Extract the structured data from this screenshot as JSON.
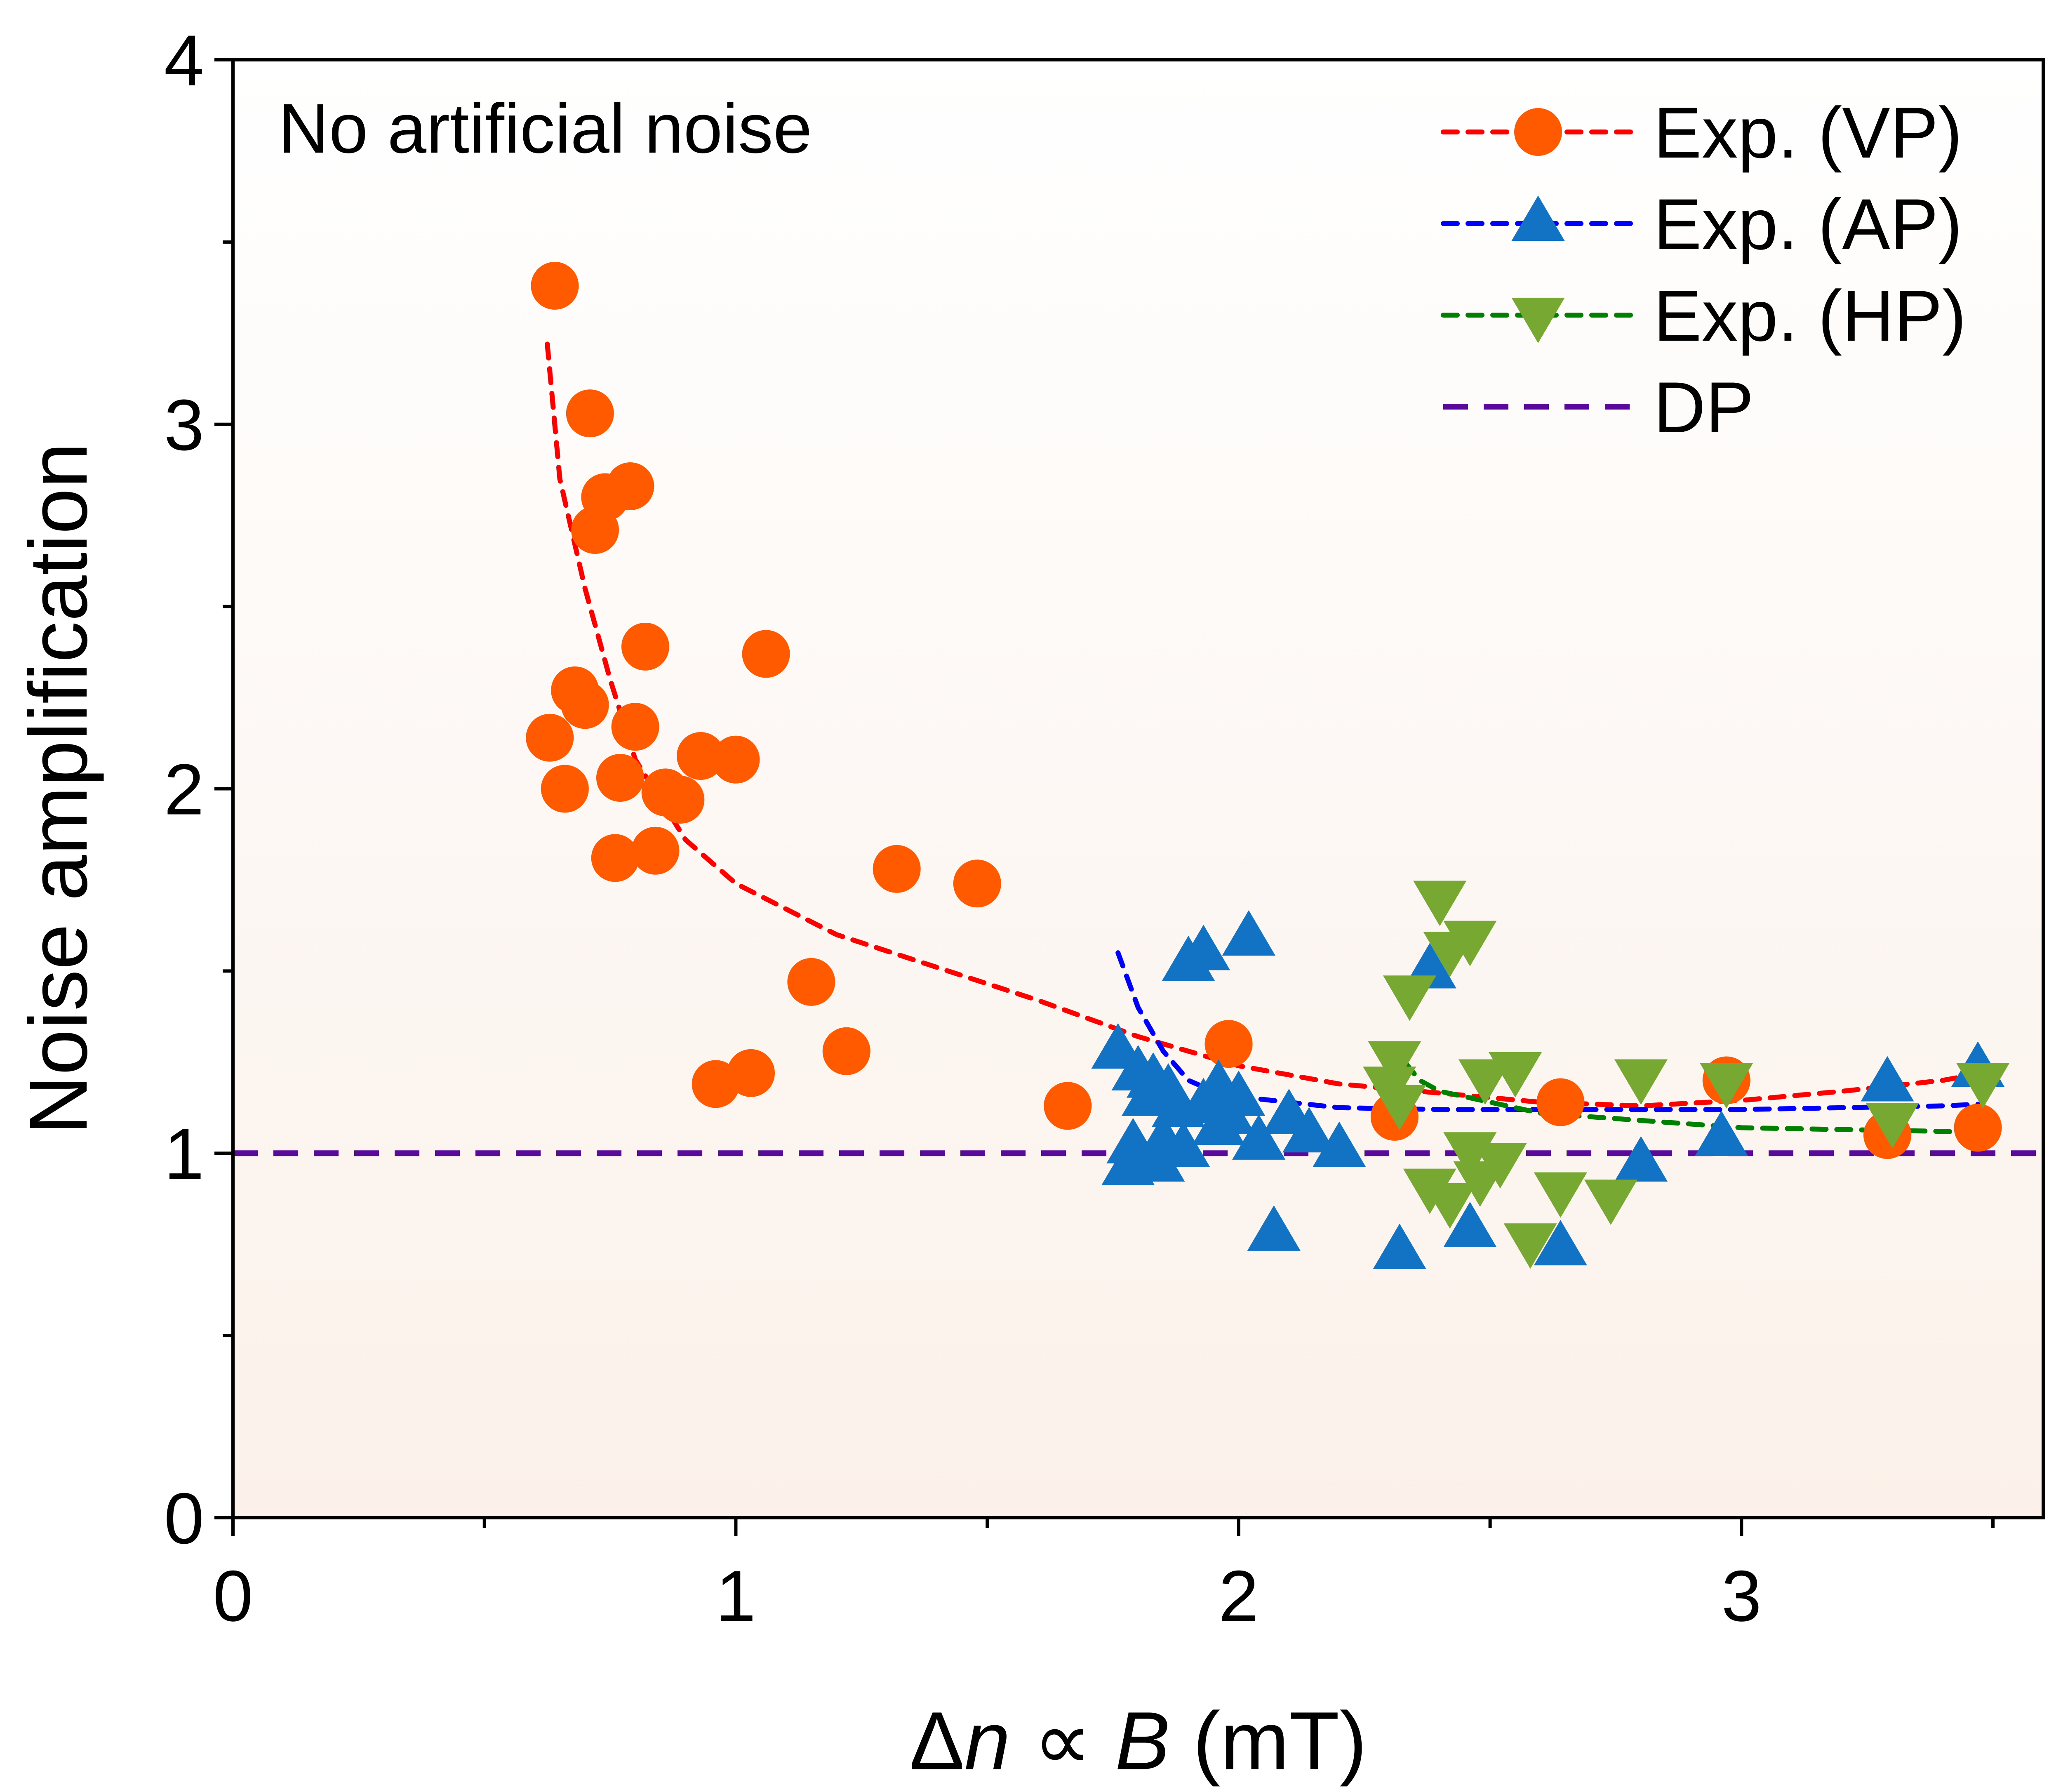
{
  "chart_data": {
    "type": "scatter",
    "annotation": "No artificial noise",
    "xlabel": {
      "delta": "Δ",
      "n": "n",
      "prop": " ∝ ",
      "b": "B",
      "unit": " (mT)"
    },
    "ylabel": "Noise amplification",
    "xlim": [
      0,
      3.6
    ],
    "ylim": [
      0,
      4
    ],
    "xticks": [
      "0",
      "1",
      "2",
      "3"
    ],
    "yticks": [
      "0",
      "1",
      "2",
      "3",
      "4"
    ],
    "grid": false,
    "legend_position": "top-right",
    "series": [
      {
        "name": "Exp. (VP)",
        "marker": "circle",
        "color": "#ff5a00",
        "line_color": "#ff0000",
        "points": [
          [
            0.64,
            3.38
          ],
          [
            0.71,
            3.03
          ],
          [
            0.74,
            2.8
          ],
          [
            0.79,
            2.83
          ],
          [
            0.72,
            2.71
          ],
          [
            0.82,
            2.39
          ],
          [
            1.06,
            2.37
          ],
          [
            0.68,
            2.27
          ],
          [
            0.7,
            2.23
          ],
          [
            0.8,
            2.17
          ],
          [
            0.63,
            2.14
          ],
          [
            0.93,
            2.09
          ],
          [
            1.0,
            2.08
          ],
          [
            0.77,
            2.03
          ],
          [
            0.66,
            2.0
          ],
          [
            0.86,
            1.99
          ],
          [
            0.89,
            1.97
          ],
          [
            0.76,
            1.81
          ],
          [
            0.84,
            1.83
          ],
          [
            1.32,
            1.78
          ],
          [
            1.48,
            1.74
          ],
          [
            1.15,
            1.47
          ],
          [
            1.22,
            1.28
          ],
          [
            1.03,
            1.22
          ],
          [
            0.96,
            1.19
          ],
          [
            1.66,
            1.13
          ],
          [
            1.98,
            1.3
          ],
          [
            2.31,
            1.1
          ],
          [
            2.64,
            1.14
          ],
          [
            2.97,
            1.2
          ],
          [
            3.29,
            1.05
          ],
          [
            3.47,
            1.07
          ]
        ],
        "fit": [
          [
            0.625,
            3.22
          ],
          [
            0.65,
            2.85
          ],
          [
            0.7,
            2.55
          ],
          [
            0.75,
            2.3
          ],
          [
            0.8,
            2.08
          ],
          [
            0.9,
            1.86
          ],
          [
            1.0,
            1.74
          ],
          [
            1.2,
            1.6
          ],
          [
            1.4,
            1.51
          ],
          [
            1.6,
            1.42
          ],
          [
            1.8,
            1.32
          ],
          [
            2.0,
            1.24
          ],
          [
            2.2,
            1.19
          ],
          [
            2.4,
            1.165
          ],
          [
            2.6,
            1.14
          ],
          [
            2.8,
            1.13
          ],
          [
            3.0,
            1.145
          ],
          [
            3.2,
            1.17
          ],
          [
            3.4,
            1.2
          ],
          [
            3.48,
            1.22
          ]
        ]
      },
      {
        "name": "Exp. (AP)",
        "marker": "triangle-up",
        "color": "#1273c4",
        "line_color": "#0000ff",
        "points": [
          [
            1.76,
            1.28
          ],
          [
            1.8,
            1.22
          ],
          [
            1.83,
            1.2
          ],
          [
            1.86,
            1.17
          ],
          [
            1.9,
            1.52
          ],
          [
            1.93,
            1.55
          ],
          [
            2.02,
            1.59
          ],
          [
            1.82,
            1.15
          ],
          [
            1.88,
            1.12
          ],
          [
            1.93,
            1.13
          ],
          [
            1.96,
            1.18
          ],
          [
            1.98,
            1.1
          ],
          [
            2.0,
            1.15
          ],
          [
            1.79,
            1.02
          ],
          [
            1.85,
            1.03
          ],
          [
            1.89,
            1.01
          ],
          [
            1.78,
            0.96
          ],
          [
            1.84,
            0.97
          ],
          [
            1.96,
            1.07
          ],
          [
            2.04,
            1.03
          ],
          [
            2.1,
            1.1
          ],
          [
            2.14,
            1.05
          ],
          [
            2.2,
            1.01
          ],
          [
            2.07,
            0.78
          ],
          [
            2.32,
            0.73
          ],
          [
            2.38,
            1.5
          ],
          [
            2.46,
            0.79
          ],
          [
            2.64,
            0.74
          ],
          [
            2.8,
            0.97
          ],
          [
            2.96,
            1.04
          ],
          [
            3.29,
            1.19
          ],
          [
            3.47,
            1.23
          ]
        ],
        "fit": [
          [
            1.76,
            1.55
          ],
          [
            1.8,
            1.4
          ],
          [
            1.85,
            1.28
          ],
          [
            1.9,
            1.2
          ],
          [
            1.95,
            1.17
          ],
          [
            2.0,
            1.155
          ],
          [
            2.2,
            1.125
          ],
          [
            2.4,
            1.12
          ],
          [
            2.6,
            1.12
          ],
          [
            2.8,
            1.12
          ],
          [
            3.0,
            1.12
          ],
          [
            3.2,
            1.125
          ],
          [
            3.4,
            1.13
          ],
          [
            3.48,
            1.135
          ]
        ]
      },
      {
        "name": "Exp. (HP)",
        "marker": "triangle-down",
        "color": "#76a832",
        "line_color": "#008000",
        "points": [
          [
            2.4,
            1.7
          ],
          [
            2.42,
            1.56
          ],
          [
            2.46,
            1.59
          ],
          [
            2.34,
            1.44
          ],
          [
            2.31,
            1.26
          ],
          [
            2.3,
            1.19
          ],
          [
            2.32,
            1.14
          ],
          [
            2.49,
            1.21
          ],
          [
            2.55,
            1.23
          ],
          [
            2.46,
            1.01
          ],
          [
            2.52,
            0.98
          ],
          [
            2.38,
            0.91
          ],
          [
            2.42,
            0.87
          ],
          [
            2.48,
            0.93
          ],
          [
            2.58,
            0.76
          ],
          [
            2.64,
            0.9
          ],
          [
            2.74,
            0.88
          ],
          [
            2.8,
            1.21
          ],
          [
            2.97,
            1.2
          ],
          [
            3.3,
            1.09
          ],
          [
            3.48,
            1.2
          ]
        ],
        "fit": [
          [
            2.3,
            1.3
          ],
          [
            2.33,
            1.25
          ],
          [
            2.36,
            1.2
          ],
          [
            2.4,
            1.17
          ],
          [
            2.5,
            1.14
          ],
          [
            2.6,
            1.11
          ],
          [
            2.8,
            1.09
          ],
          [
            3.0,
            1.07
          ],
          [
            3.2,
            1.065
          ],
          [
            3.4,
            1.06
          ],
          [
            3.48,
            1.055
          ]
        ]
      },
      {
        "name": "DP",
        "marker": "none",
        "color": "#4b0082",
        "line_color": "#5a0a9a",
        "points": [],
        "fit": [
          [
            0,
            1
          ],
          [
            3.6,
            1
          ]
        ]
      }
    ]
  }
}
